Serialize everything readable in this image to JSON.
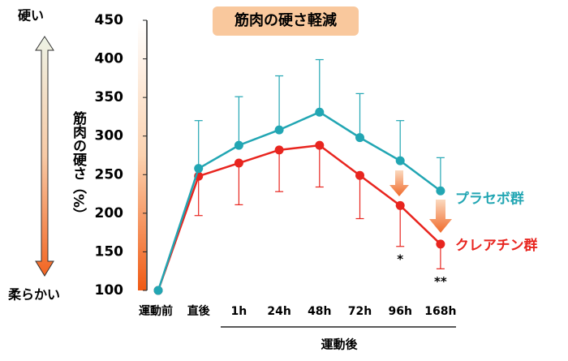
{
  "chart_data": {
    "type": "line",
    "title": "筋肉の硬さ軽減",
    "y_label": "筋肉の硬さ（%）",
    "y_top_note": "硬い",
    "y_bottom_note": "柔らかい",
    "x_group_label": "運動後",
    "categories": [
      "運動前",
      "直後",
      "1h",
      "24h",
      "48h",
      "72h",
      "96h",
      "168h"
    ],
    "series": [
      {
        "name": "プラセボ群",
        "color": "#22a6b3",
        "error_direction": "up",
        "values": [
          100,
          258,
          288,
          308,
          331,
          298,
          268,
          229
        ],
        "errors": [
          null,
          62,
          63,
          70,
          68,
          57,
          52,
          43
        ]
      },
      {
        "name": "クレアチン群",
        "color": "#e8251f",
        "error_direction": "down",
        "values": [
          100,
          248,
          265,
          282,
          288,
          249,
          210,
          160
        ],
        "errors": [
          null,
          51,
          54,
          54,
          54,
          56,
          53,
          32
        ]
      }
    ],
    "annotations": [
      {
        "category": 6,
        "text": "*"
      },
      {
        "category": 7,
        "text": "**"
      }
    ],
    "ylim": [
      100,
      450
    ],
    "yticks": [
      100,
      150,
      200,
      250,
      300,
      350,
      400,
      450
    ]
  }
}
